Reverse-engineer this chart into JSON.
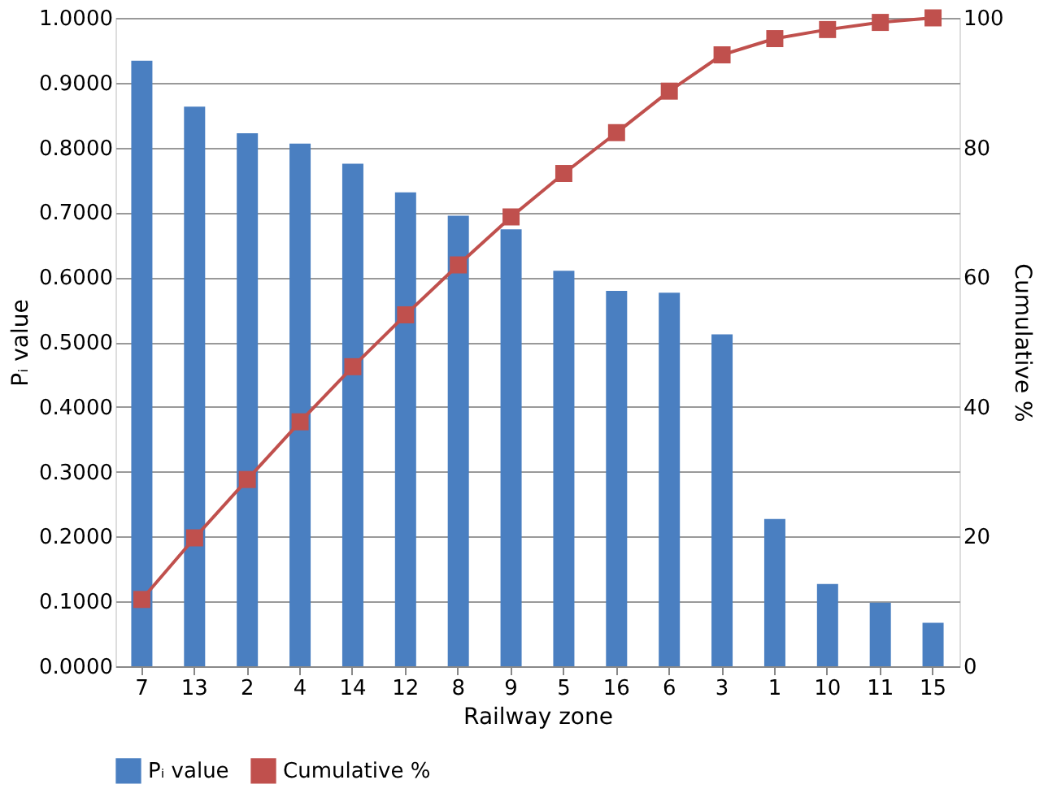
{
  "chart_data": {
    "type": "bar",
    "xlabel": "Railway zone",
    "ylabel": "Pᵢ value",
    "y2label": "Cumulative %",
    "categories": [
      "7",
      "13",
      "2",
      "4",
      "14",
      "12",
      "8",
      "9",
      "5",
      "16",
      "6",
      "3",
      "1",
      "10",
      "11",
      "15"
    ],
    "series": [
      {
        "name": "Pᵢ value",
        "color": "#4a7fc1",
        "values": [
          0.934,
          0.863,
          0.822,
          0.806,
          0.775,
          0.731,
          0.695,
          0.674,
          0.61,
          0.579,
          0.576,
          0.512,
          0.227,
          0.127,
          0.098,
          0.067
        ]
      },
      {
        "name": "Cumulative %",
        "type": "line",
        "axis": "y2",
        "color": "#c0504d",
        "values": [
          10.3,
          19.8,
          28.8,
          37.7,
          46.2,
          54.2,
          61.9,
          69.3,
          76.0,
          82.3,
          88.7,
          94.3,
          96.8,
          98.2,
          99.3,
          100
        ]
      }
    ],
    "ylim": [
      0,
      1
    ],
    "yticks": [
      {
        "value": 0,
        "label": "0.0000"
      },
      {
        "value": 0.1,
        "label": "0.1000"
      },
      {
        "value": 0.2,
        "label": "0.2000"
      },
      {
        "value": 0.3,
        "label": "0.3000"
      },
      {
        "value": 0.4,
        "label": "0.4000"
      },
      {
        "value": 0.5,
        "label": "0.5000"
      },
      {
        "value": 0.6,
        "label": "0.6000"
      },
      {
        "value": 0.7,
        "label": "0.7000"
      },
      {
        "value": 0.8,
        "label": "0.8000"
      },
      {
        "value": 0.9,
        "label": "0.9000"
      },
      {
        "value": 1,
        "label": "1.0000"
      }
    ],
    "y2lim": [
      0,
      100
    ],
    "y2ticks": [
      0,
      20,
      40,
      60,
      80,
      100
    ],
    "grid": "y",
    "legend": "bottom",
    "marker": "square",
    "line_style": "solid"
  }
}
